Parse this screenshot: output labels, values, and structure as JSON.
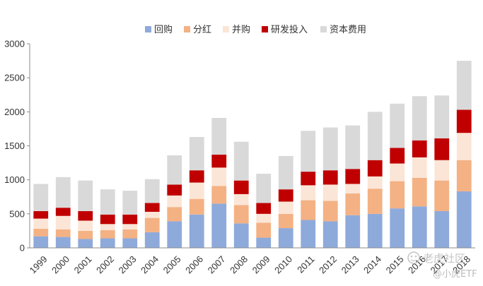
{
  "chart_data": {
    "type": "bar",
    "stacked": true,
    "categories": [
      "1999",
      "2000",
      "2001",
      "2002",
      "2003",
      "2004",
      "2005",
      "2006",
      "2007",
      "2008",
      "2009",
      "2010",
      "2011",
      "2012",
      "2013",
      "2014",
      "2015",
      "2016",
      "2017",
      "2018"
    ],
    "series": [
      {
        "name": "回购",
        "color": "#8eaadb",
        "values": [
          170,
          160,
          130,
          140,
          140,
          230,
          390,
          490,
          650,
          360,
          150,
          290,
          410,
          390,
          480,
          500,
          580,
          610,
          540,
          830
        ]
      },
      {
        "name": "分红",
        "color": "#f4b183",
        "values": [
          110,
          110,
          120,
          120,
          130,
          210,
          210,
          230,
          260,
          270,
          220,
          210,
          290,
          300,
          320,
          370,
          400,
          420,
          450,
          460
        ]
      },
      {
        "name": "并购",
        "color": "#fbe5d6",
        "values": [
          150,
          200,
          150,
          90,
          80,
          90,
          170,
          240,
          270,
          160,
          130,
          180,
          220,
          240,
          140,
          180,
          260,
          300,
          300,
          400
        ]
      },
      {
        "name": "研发投入",
        "color": "#c00000",
        "values": [
          110,
          120,
          140,
          140,
          140,
          130,
          160,
          180,
          190,
          200,
          160,
          180,
          200,
          210,
          220,
          240,
          230,
          250,
          320,
          340
        ]
      },
      {
        "name": "资本费用",
        "color": "#d9d9d9",
        "values": [
          400,
          450,
          450,
          370,
          350,
          350,
          430,
          490,
          540,
          570,
          430,
          490,
          600,
          630,
          640,
          710,
          650,
          650,
          630,
          720
        ]
      }
    ],
    "y_ticks": [
      0,
      500,
      1000,
      1500,
      2000,
      2500,
      3000
    ],
    "ylim": [
      0,
      3000
    ],
    "grid": false,
    "legend_position": "top-center",
    "title": "",
    "xlabel": "",
    "ylabel": ""
  },
  "watermark": {
    "primary": "老虎社区",
    "secondary": "@小虎ETF"
  }
}
